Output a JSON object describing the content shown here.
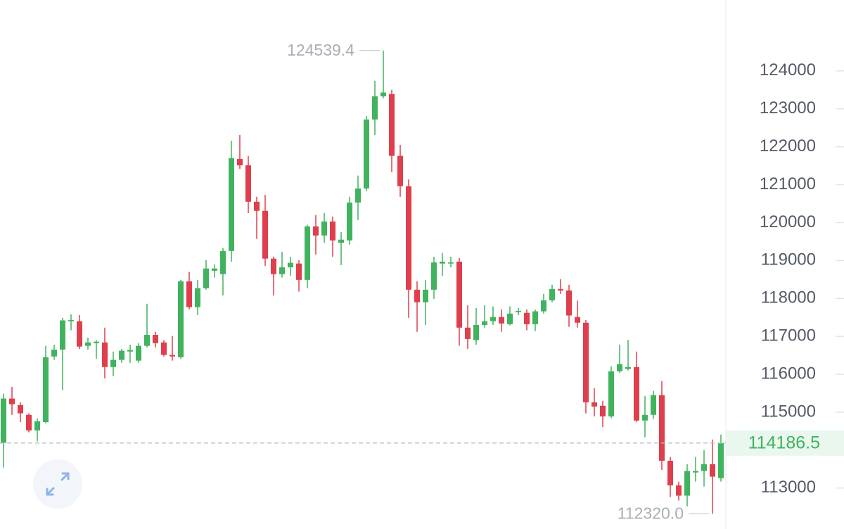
{
  "chart_data": {
    "type": "candlestick",
    "up_color": "#41b35f",
    "down_color": "#df3f4c",
    "grid": false,
    "ylim": [
      111920,
      125870
    ],
    "yticks": [
      113000,
      114000,
      115000,
      116000,
      117000,
      118000,
      119000,
      120000,
      121000,
      122000,
      123000,
      124000
    ],
    "open": [
      114190,
      115360,
      115190,
      114930,
      114520,
      114740,
      116470,
      116650,
      117400,
      117400,
      116750,
      116820,
      116840,
      116190,
      116380,
      116600,
      116360,
      116750,
      117040,
      116840,
      116510,
      116450,
      118450,
      117770,
      118270,
      118730,
      118640,
      119250,
      121680,
      121510,
      120550,
      120310,
      119050,
      118640,
      118820,
      118920,
      118490,
      119900,
      119660,
      120030,
      119470,
      119530,
      120530,
      120900,
      122720,
      123330,
      123390,
      121760,
      120960,
      118230,
      117900,
      118230,
      118920,
      118920,
      118970,
      117230,
      116900,
      117300,
      117400,
      117510,
      117320,
      117640,
      117620,
      117320,
      117660,
      117950,
      118250,
      118210,
      117510,
      117360,
      115260,
      115170,
      114890,
      116080,
      116140,
      116190,
      114780,
      114930,
      115450,
      113720,
      113070,
      112800,
      113410,
      113450,
      113630,
      113260
    ],
    "high": [
      115490,
      115670,
      115260,
      114970,
      114840,
      116750,
      116780,
      117490,
      117580,
      117560,
      116970,
      116900,
      117230,
      116600,
      116670,
      116780,
      116820,
      117860,
      117120,
      116900,
      117010,
      118490,
      118700,
      118490,
      119010,
      118900,
      119330,
      122160,
      122310,
      121760,
      120680,
      120730,
      119100,
      119230,
      119100,
      119010,
      119940,
      120200,
      120250,
      120160,
      119750,
      120680,
      121240,
      122810,
      123740,
      124539.4,
      123500,
      122050,
      121140,
      118450,
      118490,
      119100,
      119200,
      119100,
      119070,
      117820,
      117750,
      117820,
      117790,
      117710,
      117790,
      117750,
      117710,
      117710,
      118120,
      118360,
      118510,
      118360,
      117940,
      117430,
      115630,
      115300,
      116210,
      116780,
      116910,
      116600,
      115430,
      115560,
      115820,
      113820,
      113170,
      113630,
      113820,
      114000,
      114280,
      114410
    ],
    "low": [
      113540,
      114930,
      114740,
      114470,
      114230,
      114710,
      116380,
      115580,
      117160,
      116670,
      116650,
      116410,
      115890,
      115950,
      116300,
      116300,
      116300,
      116710,
      116710,
      116470,
      116360,
      116410,
      117710,
      117560,
      118230,
      118550,
      118080,
      118970,
      121420,
      120250,
      119570,
      118860,
      118080,
      118550,
      118600,
      118180,
      118270,
      119160,
      119470,
      119100,
      118880,
      119420,
      120070,
      120830,
      122310,
      123280,
      121330,
      120680,
      117490,
      117120,
      117300,
      117990,
      118600,
      118820,
      116750,
      116670,
      116780,
      117230,
      117300,
      117120,
      117290,
      117560,
      117160,
      117140,
      117600,
      117900,
      118120,
      117250,
      117230,
      114970,
      114890,
      114610,
      114840,
      116040,
      116100,
      114740,
      114340,
      114820,
      113480,
      112760,
      112670,
      112520,
      113170,
      113040,
      112320,
      113170
    ],
    "close": [
      115360,
      115210,
      114970,
      114520,
      114760,
      116450,
      116650,
      117420,
      117430,
      116730,
      116840,
      116860,
      116190,
      116380,
      116620,
      116640,
      116750,
      117040,
      116820,
      116510,
      116470,
      118450,
      117770,
      118270,
      118790,
      118790,
      119250,
      121700,
      121510,
      120550,
      120310,
      119050,
      118640,
      118820,
      118940,
      118490,
      119900,
      119660,
      120030,
      119530,
      119550,
      120530,
      120900,
      122720,
      123330,
      123430,
      121760,
      120960,
      118230,
      117900,
      118230,
      118950,
      118970,
      118950,
      117230,
      116930,
      117300,
      117400,
      117510,
      117340,
      117600,
      117670,
      117320,
      117660,
      117950,
      118250,
      118210,
      117550,
      117360,
      115260,
      115150,
      114890,
      116080,
      116270,
      116190,
      114780,
      114930,
      115450,
      113720,
      113070,
      112800,
      113450,
      113450,
      113630,
      113300,
      114186.5
    ],
    "max_label": {
      "value": 124539.4,
      "label": "124539.4"
    },
    "min_label": {
      "value": 112320,
      "label": "112320.0"
    },
    "last_price": 114186.5
  }
}
